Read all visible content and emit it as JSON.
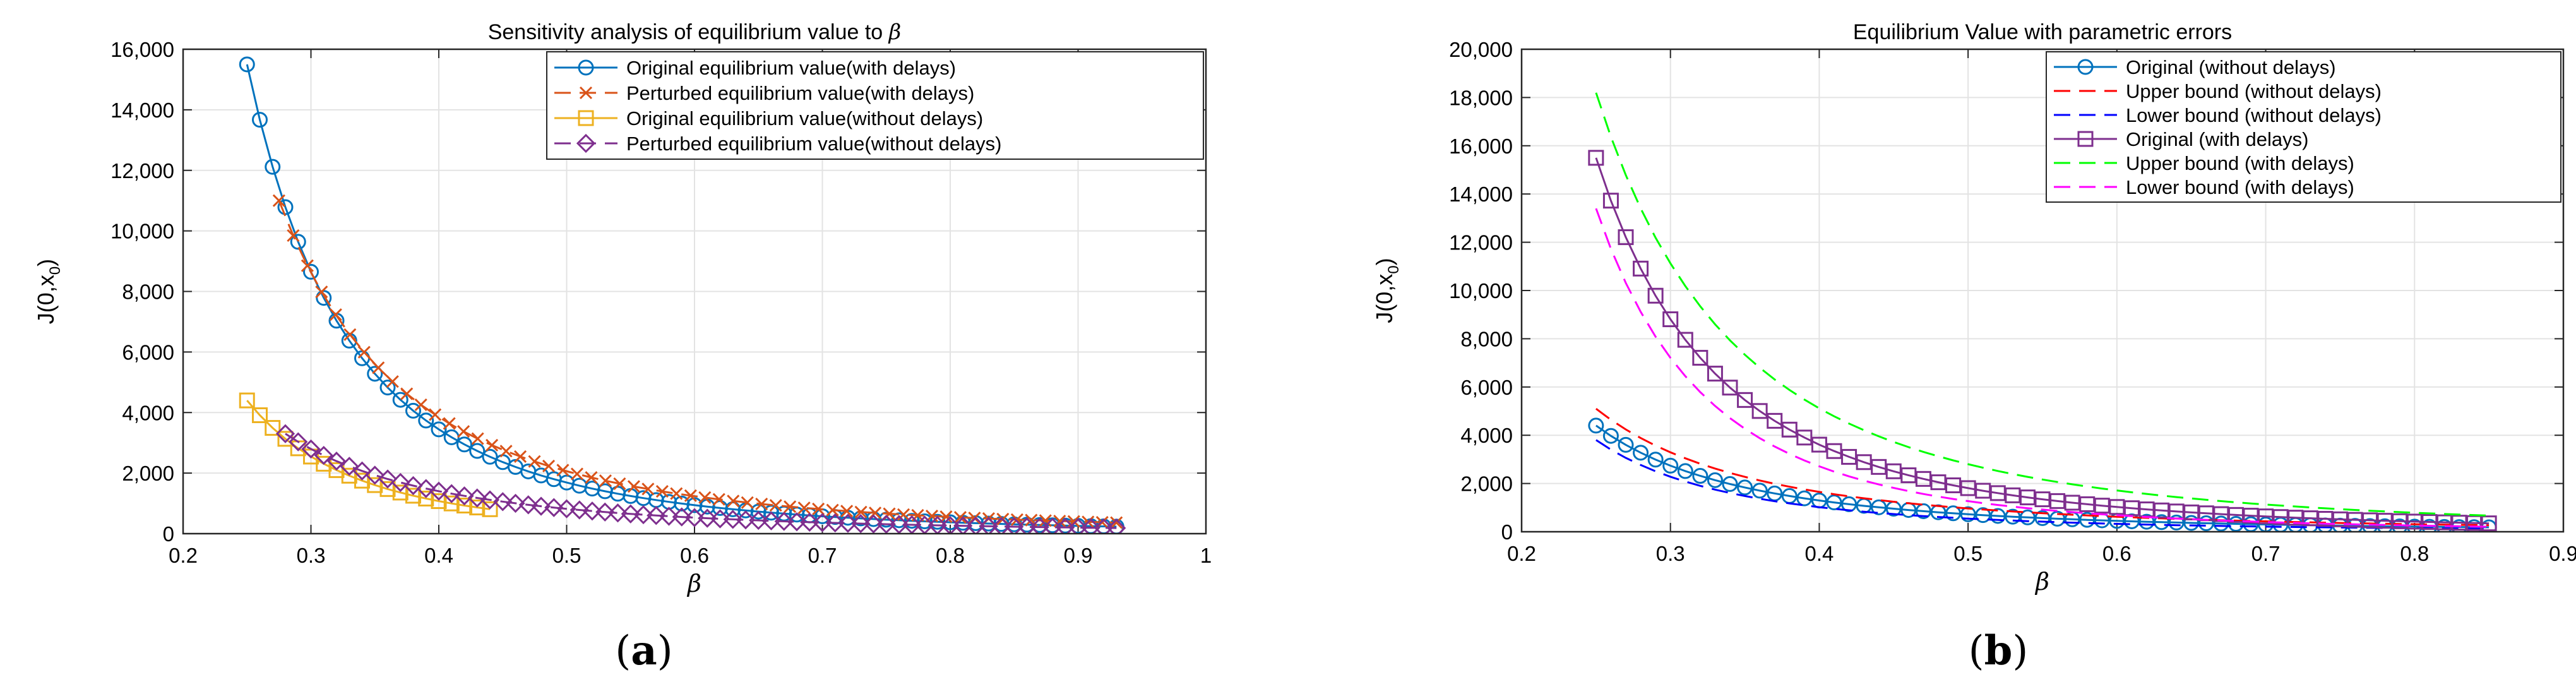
{
  "chart_data": [
    {
      "panel_label": "a",
      "type": "line",
      "title_text": "Sensitivity analysis of equilibrium value to ",
      "title_symbol": "β",
      "xlabel": "β",
      "ylabel_main": "J(0,x",
      "ylabel_sub": "0",
      "ylabel_close": ")",
      "xlim": [
        0.2,
        1
      ],
      "ylim": [
        0,
        16000
      ],
      "xticks": [
        "0.2",
        "0.3",
        "0.4",
        "0.5",
        "0.6",
        "0.7",
        "0.8",
        "0.9",
        "1"
      ],
      "yticks": [
        "0",
        "2,000",
        "4,000",
        "6,000",
        "8,000",
        "10,000",
        "12,000",
        "14,000",
        "16,000"
      ],
      "grid": true,
      "legend_placement": "top-right",
      "series": [
        {
          "name": "Original equilibrium value(with delays)",
          "color": "#0072BD",
          "line": "solid",
          "marker": "circle",
          "x_start": 0.25,
          "x_end": 0.93,
          "points": 69,
          "y_start": 15500,
          "exponent": 3.2
        },
        {
          "name": "Perturbed equilibrium value(with delays)",
          "color": "#D95319",
          "line": "dashed",
          "marker": "x",
          "x_start": 0.275,
          "x_end": 0.93,
          "points": 60,
          "y_start": 11000,
          "exponent": 2.8
        },
        {
          "name": "Original equilibrium value(without delays)",
          "color": "#EDB120",
          "line": "solid",
          "marker": "square",
          "x_start": 0.25,
          "x_end": 0.44,
          "points": 20,
          "y_start": 4400,
          "exponent": 3.0
        },
        {
          "name": "Perturbed equilibrium value(without delays)",
          "color": "#7E2F8E",
          "line": "dashed",
          "marker": "diamond",
          "x_start": 0.28,
          "x_end": 0.93,
          "points": 66,
          "y_start": 3300,
          "exponent": 2.4
        }
      ]
    },
    {
      "panel_label": "b",
      "type": "line",
      "title_text": "Equilibrium Value with parametric errors",
      "title_symbol": "",
      "xlabel": "β",
      "ylabel_main": "J(0,x",
      "ylabel_sub": "0",
      "ylabel_close": ")",
      "xlim": [
        0.2,
        0.9
      ],
      "ylim": [
        0,
        20000
      ],
      "xticks": [
        "0.2",
        "0.3",
        "0.4",
        "0.5",
        "0.6",
        "0.7",
        "0.8",
        "0.9"
      ],
      "yticks": [
        "0",
        "2,000",
        "4,000",
        "6,000",
        "8,000",
        "10,000",
        "12,000",
        "14,000",
        "16,000",
        "18,000",
        "20,000"
      ],
      "grid": true,
      "legend_placement": "top-right",
      "series": [
        {
          "name": "Original (without delays)",
          "color": "#0072BD",
          "line": "solid",
          "marker": "circle",
          "x_start": 0.25,
          "x_end": 0.85,
          "points": 61,
          "y_start": 4400,
          "exponent": 2.6
        },
        {
          "name": "Upper bound (without delays)",
          "color": "#FF0000",
          "line": "dashed",
          "marker": "none",
          "x_start": 0.25,
          "x_end": 0.85,
          "points": 61,
          "y_start": 5100,
          "exponent": 2.4
        },
        {
          "name": "Lower bound (without delays)",
          "color": "#0000FF",
          "line": "dashed",
          "marker": "none",
          "x_start": 0.25,
          "x_end": 0.85,
          "points": 61,
          "y_start": 3800,
          "exponent": 2.8
        },
        {
          "name": "Original (with delays)",
          "color": "#7E2F8E",
          "line": "solid",
          "marker": "square",
          "x_start": 0.25,
          "x_end": 0.85,
          "points": 61,
          "y_start": 15500,
          "exponent": 3.1
        },
        {
          "name": "Upper bound (with delays)",
          "color": "#00FF00",
          "line": "dashed",
          "marker": "none",
          "x_start": 0.25,
          "x_end": 0.85,
          "points": 61,
          "y_start": 18200,
          "exponent": 2.7
        },
        {
          "name": "Lower bound (with delays)",
          "color": "#FF00FF",
          "line": "dashed",
          "marker": "none",
          "x_start": 0.25,
          "x_end": 0.85,
          "points": 61,
          "y_start": 13400,
          "exponent": 3.4
        }
      ]
    }
  ]
}
